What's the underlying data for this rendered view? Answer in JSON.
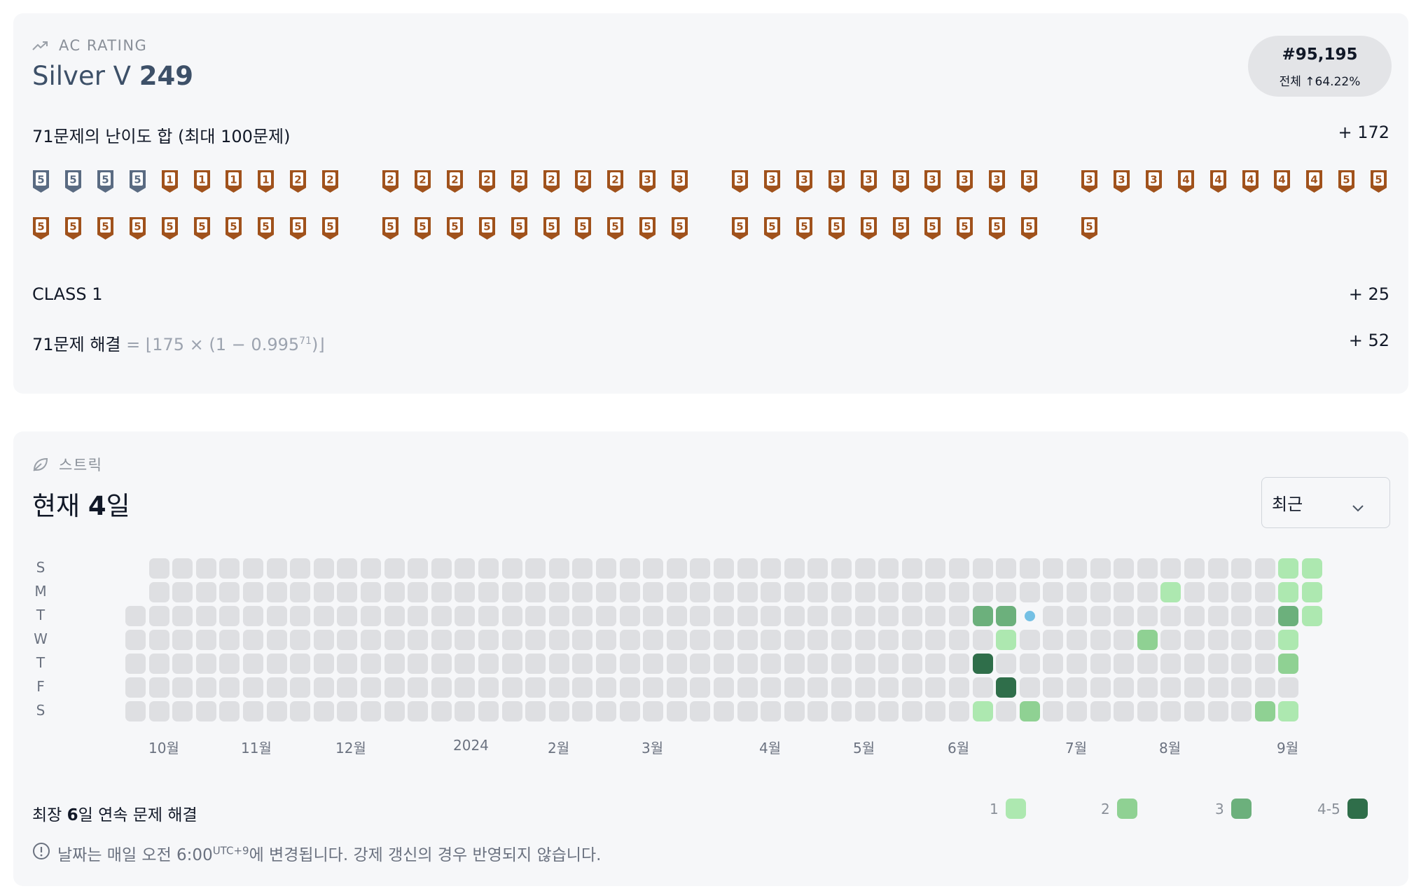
{
  "rating": {
    "section_label": "AC RATING",
    "tier_name": "Silver V",
    "tier_value": "249",
    "rank": "#95,195",
    "rank_sub": "전체 ↑64.22%",
    "difficulty_label": "71문제의 난이도 합 (최대 100문제)",
    "difficulty_value": "+ 172",
    "class_label": "CLASS 1",
    "class_value": "+ 25",
    "solved_label": "71문제 해결",
    "solved_formula_prefix": "= ⌊175 × (1 − 0.995",
    "solved_formula_exp": "71",
    "solved_formula_suffix": ")⌋",
    "solved_value": "+ 52",
    "badges": [
      [
        "5",
        "5",
        "5",
        "5",
        "1",
        "1",
        "1",
        "1",
        "2",
        "2",
        "2",
        "2",
        "2",
        "2",
        "2",
        "2",
        "2",
        "2",
        "3",
        "3",
        "3",
        "3",
        "3",
        "3",
        "3",
        "3",
        "3",
        "3",
        "3",
        "3",
        "3",
        "3",
        "3",
        "4",
        "4",
        "4",
        "4",
        "4",
        "5",
        "5"
      ],
      [
        "5",
        "5",
        "5",
        "5",
        "5",
        "5",
        "5",
        "5",
        "5",
        "5",
        "5",
        "5",
        "5",
        "5",
        "5",
        "5",
        "5",
        "5",
        "5",
        "5",
        "5",
        "5",
        "5",
        "5",
        "5",
        "5",
        "5",
        "5",
        "5",
        "5",
        "5"
      ]
    ],
    "badge_tiers": [
      [
        "bronze",
        "bronze",
        "bronze",
        "bronze",
        "silver",
        "silver",
        "silver",
        "silver",
        "silver",
        "silver",
        "silver",
        "silver",
        "silver",
        "silver",
        "silver",
        "silver",
        "silver",
        "silver",
        "silver",
        "silver",
        "silver",
        "silver",
        "silver",
        "silver",
        "silver",
        "silver",
        "silver",
        "silver",
        "silver",
        "silver",
        "silver",
        "silver",
        "silver",
        "silver",
        "silver",
        "silver",
        "silver",
        "silver",
        "silver",
        "silver"
      ],
      [
        "silver",
        "silver",
        "silver",
        "silver",
        "silver",
        "silver",
        "silver",
        "silver",
        "silver",
        "silver",
        "silver",
        "silver",
        "silver",
        "silver",
        "silver",
        "silver",
        "silver",
        "silver",
        "silver",
        "silver",
        "silver",
        "silver",
        "silver",
        "silver",
        "silver",
        "silver",
        "silver",
        "silver",
        "silver",
        "silver",
        "silver"
      ]
    ],
    "colors": {
      "bronze": "#5a6b82",
      "silver": "#a0521c"
    }
  },
  "streak": {
    "section_label": "스트릭",
    "title_prefix": "현재 ",
    "title_value": "4",
    "title_suffix": "일",
    "select_value": "최근",
    "weekdays": [
      "S",
      "M",
      "T",
      "W",
      "T",
      "F",
      "S"
    ],
    "months": [
      "10월",
      "11월",
      "12월",
      "2024",
      "2월",
      "3월",
      "4월",
      "5월",
      "6월",
      "7월",
      "8월",
      "9월"
    ],
    "active_cells": [
      {
        "week": 36,
        "day": 2,
        "level": 3
      },
      {
        "week": 36,
        "day": 6,
        "level": 1
      },
      {
        "week": 37,
        "day": 2,
        "level": 3
      },
      {
        "week": 37,
        "day": 3,
        "level": 1
      },
      {
        "week": 36,
        "day": 4,
        "level": 4
      },
      {
        "week": 37,
        "day": 5,
        "level": 4
      },
      {
        "week": 38,
        "day": 6,
        "level": 2
      },
      {
        "week": 44,
        "day": 1,
        "level": 1
      },
      {
        "week": 43,
        "day": 3,
        "level": 2
      },
      {
        "week": 49,
        "day": 0,
        "level": 1
      },
      {
        "week": 50,
        "day": 0,
        "level": 1
      },
      {
        "week": 49,
        "day": 1,
        "level": 1
      },
      {
        "week": 50,
        "day": 1,
        "level": 1
      },
      {
        "week": 49,
        "day": 2,
        "level": 3
      },
      {
        "week": 50,
        "day": 2,
        "level": 1
      },
      {
        "week": 49,
        "day": 3,
        "level": 1
      },
      {
        "week": 49,
        "day": 4,
        "level": 2
      },
      {
        "week": 48,
        "day": 6,
        "level": 2
      },
      {
        "week": 49,
        "day": 6,
        "level": 1
      }
    ],
    "today_dot": {
      "week": 38,
      "day": 2
    },
    "longest_prefix": "최장 ",
    "longest_value": "6",
    "longest_suffix": "일 연속 문제 해결",
    "legend": [
      "1",
      "2",
      "3",
      "4-5"
    ],
    "legend_colors": [
      "#ade8b0",
      "#8fd193",
      "#6cb07c",
      "#2f6e4a"
    ],
    "notice_prefix": "날짜는 매일 오전 6:00",
    "notice_sup": "UTC+9",
    "notice_suffix": "에 변경됩니다. 강제 갱신의 경우 반영되지 않습니다."
  }
}
